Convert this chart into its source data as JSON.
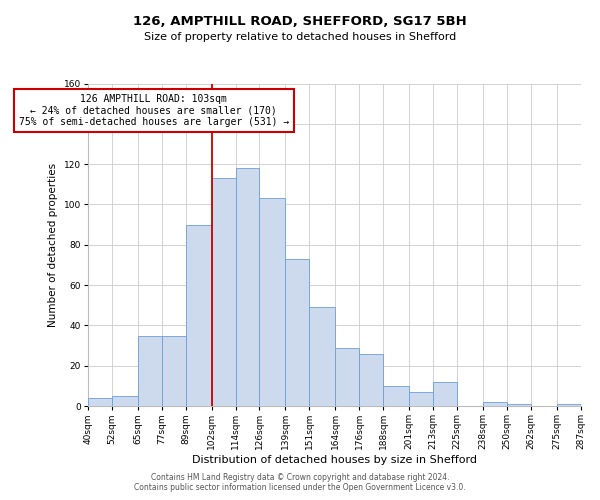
{
  "title": "126, AMPTHILL ROAD, SHEFFORD, SG17 5BH",
  "subtitle": "Size of property relative to detached houses in Shefford",
  "xlabel": "Distribution of detached houses by size in Shefford",
  "ylabel": "Number of detached properties",
  "bar_edges": [
    40,
    52,
    65,
    77,
    89,
    102,
    114,
    126,
    139,
    151,
    164,
    176,
    188,
    201,
    213,
    225,
    238,
    250,
    262,
    275,
    287
  ],
  "bar_heights": [
    4,
    5,
    35,
    35,
    90,
    113,
    118,
    103,
    73,
    49,
    29,
    26,
    10,
    7,
    12,
    0,
    2,
    1,
    0,
    1
  ],
  "bar_color": "#cdd9ed",
  "bar_edgecolor": "#6b9fd4",
  "vline_x": 102,
  "vline_color": "#cc0000",
  "annotation_text_line1": "126 AMPTHILL ROAD: 103sqm",
  "annotation_text_line2": "← 24% of detached houses are smaller (170)",
  "annotation_text_line3": "75% of semi-detached houses are larger (531) →",
  "annotation_box_facecolor": "#ffffff",
  "annotation_box_edgecolor": "#cc0000",
  "ylim": [
    0,
    160
  ],
  "yticks": [
    0,
    20,
    40,
    60,
    80,
    100,
    120,
    140,
    160
  ],
  "xtick_labels": [
    "40sqm",
    "52sqm",
    "65sqm",
    "77sqm",
    "89sqm",
    "102sqm",
    "114sqm",
    "126sqm",
    "139sqm",
    "151sqm",
    "164sqm",
    "176sqm",
    "188sqm",
    "201sqm",
    "213sqm",
    "225sqm",
    "238sqm",
    "250sqm",
    "262sqm",
    "275sqm",
    "287sqm"
  ],
  "footer_line1": "Contains HM Land Registry data © Crown copyright and database right 2024.",
  "footer_line2": "Contains public sector information licensed under the Open Government Licence v3.0.",
  "background_color": "#ffffff",
  "grid_color": "#cccccc",
  "title_fontsize": 9.5,
  "subtitle_fontsize": 8,
  "axis_label_fontsize": 7.5,
  "tick_fontsize": 6.5,
  "annotation_fontsize": 7,
  "footer_fontsize": 5.5
}
